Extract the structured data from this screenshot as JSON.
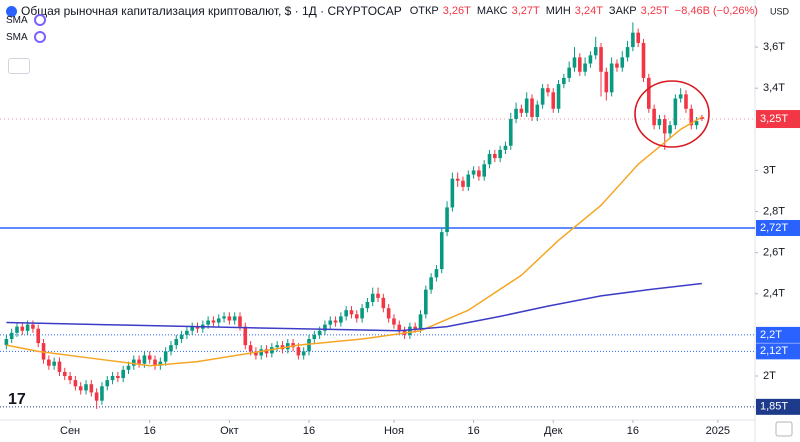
{
  "chart_data": {
    "type": "candlestick",
    "title": "Общая рыночная капитализация криптовалют, $ · 1Д · CRYPTOCAP",
    "header_stats": [
      {
        "label": "ОТКР",
        "value": "3,26T"
      },
      {
        "label": "МАКС",
        "value": "3,27T"
      },
      {
        "label": "МИН",
        "value": "3,24T"
      },
      {
        "label": "ЗАКР",
        "value": "3,25T"
      }
    ],
    "change": "−8,46B (−0,26%)",
    "currency": "USD",
    "up_color": "#089981",
    "down_color": "#f23645",
    "x": [
      0,
      1,
      2,
      3,
      4,
      5,
      6,
      7,
      8,
      9,
      10,
      11,
      12,
      13,
      14,
      15,
      16,
      17,
      18,
      19,
      20,
      21,
      22,
      23,
      24,
      25,
      26,
      27,
      28,
      29,
      30,
      31,
      32,
      33,
      34,
      35,
      36,
      37,
      38,
      39,
      40,
      41,
      42,
      43,
      44,
      45,
      46,
      47,
      48,
      49,
      50,
      51,
      52,
      53,
      54,
      55,
      56,
      57,
      58,
      59,
      60,
      61,
      62,
      63,
      64,
      65,
      66,
      67,
      68,
      69,
      70,
      71,
      72,
      73,
      74,
      75,
      76,
      77,
      78,
      79,
      80,
      81,
      82,
      83,
      84,
      85,
      86,
      87,
      88,
      89,
      90,
      91,
      92,
      93,
      94,
      95,
      96,
      97,
      98,
      99,
      100,
      101,
      102,
      103,
      104,
      105,
      106,
      107,
      108,
      109,
      110,
      111,
      112,
      113,
      114,
      115,
      116,
      117,
      118,
      119,
      120,
      121,
      122,
      123,
      124,
      125,
      126,
      127,
      128,
      129,
      130,
      131
    ],
    "open": [
      2.15,
      2.18,
      2.21,
      2.24,
      2.22,
      2.25,
      2.23,
      2.16,
      2.08,
      2.05,
      2.07,
      2.02,
      2.0,
      1.98,
      1.95,
      1.93,
      1.96,
      1.92,
      1.88,
      1.95,
      1.98,
      2.0,
      1.99,
      2.03,
      2.05,
      2.08,
      2.06,
      2.1,
      2.08,
      2.05,
      2.07,
      2.12,
      2.15,
      2.18,
      2.2,
      2.22,
      2.24,
      2.23,
      2.25,
      2.27,
      2.26,
      2.28,
      2.29,
      2.27,
      2.29,
      2.24,
      2.15,
      2.12,
      2.1,
      2.13,
      2.11,
      2.14,
      2.15,
      2.13,
      2.16,
      2.14,
      2.1,
      2.12,
      2.18,
      2.2,
      2.22,
      2.25,
      2.27,
      2.26,
      2.29,
      2.32,
      2.3,
      2.28,
      2.33,
      2.36,
      2.4,
      2.38,
      2.33,
      2.28,
      2.25,
      2.22,
      2.2,
      2.24,
      2.23,
      2.3,
      2.42,
      2.48,
      2.52,
      2.7,
      2.82,
      2.96,
      2.95,
      2.92,
      2.98,
      3.0,
      2.97,
      3.03,
      3.08,
      3.06,
      3.1,
      3.12,
      3.25,
      3.3,
      3.28,
      3.35,
      3.26,
      3.32,
      3.4,
      3.38,
      3.3,
      3.42,
      3.45,
      3.5,
      3.55,
      3.48,
      3.52,
      3.56,
      3.6,
      3.48,
      3.38,
      3.52,
      3.5,
      3.55,
      3.6,
      3.67,
      3.62,
      3.45,
      3.3,
      3.22,
      3.25,
      3.18,
      3.22,
      3.35,
      3.37,
      3.3,
      3.22,
      3.26
    ],
    "high": [
      2.2,
      2.23,
      2.26,
      2.26,
      2.27,
      2.27,
      2.25,
      2.18,
      2.1,
      2.09,
      2.09,
      2.04,
      2.02,
      2.0,
      1.97,
      1.98,
      1.98,
      1.94,
      1.97,
      2.0,
      2.02,
      2.02,
      2.05,
      2.07,
      2.1,
      2.1,
      2.12,
      2.12,
      2.1,
      2.09,
      2.14,
      2.17,
      2.2,
      2.22,
      2.24,
      2.26,
      2.26,
      2.27,
      2.29,
      2.29,
      2.3,
      2.31,
      2.31,
      2.31,
      2.31,
      2.26,
      2.17,
      2.14,
      2.15,
      2.15,
      2.16,
      2.17,
      2.17,
      2.18,
      2.18,
      2.16,
      2.14,
      2.2,
      2.22,
      2.24,
      2.27,
      2.29,
      2.29,
      2.31,
      2.34,
      2.34,
      2.32,
      2.35,
      2.38,
      2.43,
      2.43,
      2.4,
      2.35,
      2.3,
      2.27,
      2.24,
      2.26,
      2.26,
      2.32,
      2.44,
      2.5,
      2.54,
      2.72,
      2.85,
      2.99,
      2.99,
      2.97,
      3.0,
      3.02,
      3.02,
      3.05,
      3.1,
      3.1,
      3.12,
      3.14,
      3.28,
      3.33,
      3.32,
      3.38,
      3.37,
      3.34,
      3.42,
      3.42,
      3.4,
      3.44,
      3.47,
      3.53,
      3.6,
      3.57,
      3.55,
      3.58,
      3.65,
      3.62,
      3.5,
      3.55,
      3.54,
      3.58,
      3.63,
      3.72,
      3.69,
      3.64,
      3.47,
      3.32,
      3.27,
      3.27,
      3.24,
      3.37,
      3.4,
      3.39,
      3.32,
      3.26,
      3.27
    ],
    "low": [
      2.13,
      2.16,
      2.19,
      2.2,
      2.2,
      2.21,
      2.14,
      2.06,
      2.03,
      2.03,
      2.0,
      1.98,
      1.96,
      1.93,
      1.91,
      1.91,
      1.9,
      1.84,
      1.86,
      1.93,
      1.96,
      1.97,
      1.97,
      2.01,
      2.03,
      2.04,
      2.04,
      2.06,
      2.03,
      2.03,
      2.05,
      2.1,
      2.13,
      2.16,
      2.18,
      2.2,
      2.21,
      2.21,
      2.23,
      2.24,
      2.24,
      2.26,
      2.25,
      2.25,
      2.22,
      2.13,
      2.1,
      2.08,
      2.08,
      2.09,
      2.09,
      2.12,
      2.11,
      2.11,
      2.12,
      2.08,
      2.08,
      2.1,
      2.16,
      2.18,
      2.2,
      2.23,
      2.24,
      2.24,
      2.27,
      2.28,
      2.26,
      2.26,
      2.31,
      2.34,
      2.36,
      2.31,
      2.26,
      2.23,
      2.2,
      2.18,
      2.18,
      2.21,
      2.21,
      2.28,
      2.4,
      2.46,
      2.5,
      2.68,
      2.8,
      2.92,
      2.9,
      2.9,
      2.96,
      2.95,
      2.95,
      3.01,
      3.04,
      3.04,
      3.08,
      3.1,
      3.23,
      3.26,
      3.26,
      3.24,
      3.24,
      3.3,
      3.36,
      3.28,
      3.28,
      3.4,
      3.43,
      3.48,
      3.46,
      3.46,
      3.5,
      3.54,
      3.36,
      3.34,
      3.36,
      3.48,
      3.48,
      3.53,
      3.58,
      3.6,
      3.43,
      3.28,
      3.2,
      3.2,
      3.1,
      3.16,
      3.2,
      3.33,
      3.28,
      3.2,
      3.2,
      3.24
    ],
    "close": [
      2.18,
      2.21,
      2.24,
      2.22,
      2.25,
      2.23,
      2.16,
      2.08,
      2.05,
      2.07,
      2.02,
      2.0,
      1.98,
      1.95,
      1.93,
      1.96,
      1.92,
      1.88,
      1.95,
      1.98,
      2.0,
      1.99,
      2.03,
      2.05,
      2.08,
      2.06,
      2.1,
      2.08,
      2.05,
      2.07,
      2.12,
      2.15,
      2.18,
      2.2,
      2.22,
      2.24,
      2.23,
      2.25,
      2.27,
      2.26,
      2.28,
      2.29,
      2.27,
      2.29,
      2.24,
      2.15,
      2.12,
      2.1,
      2.13,
      2.11,
      2.14,
      2.15,
      2.13,
      2.16,
      2.14,
      2.1,
      2.12,
      2.18,
      2.2,
      2.22,
      2.25,
      2.27,
      2.26,
      2.29,
      2.32,
      2.3,
      2.28,
      2.33,
      2.36,
      2.4,
      2.38,
      2.33,
      2.28,
      2.25,
      2.22,
      2.2,
      2.24,
      2.23,
      2.3,
      2.42,
      2.48,
      2.52,
      2.7,
      2.82,
      2.96,
      2.95,
      2.92,
      2.98,
      3.0,
      2.97,
      3.03,
      3.08,
      3.06,
      3.1,
      3.12,
      3.25,
      3.3,
      3.28,
      3.35,
      3.26,
      3.32,
      3.4,
      3.38,
      3.3,
      3.42,
      3.45,
      3.5,
      3.55,
      3.48,
      3.52,
      3.56,
      3.6,
      3.48,
      3.38,
      3.52,
      3.5,
      3.55,
      3.6,
      3.67,
      3.62,
      3.45,
      3.3,
      3.22,
      3.25,
      3.18,
      3.22,
      3.35,
      3.37,
      3.3,
      3.22,
      3.24,
      3.25
    ],
    "series": [
      {
        "name": "SMA",
        "color": "#f5a623",
        "x": [
          0,
          6,
          18,
          27,
          36,
          48,
          55,
          67,
          78,
          87,
          97,
          104,
          112,
          119,
          127,
          131
        ],
        "values": [
          2.15,
          2.12,
          2.08,
          2.05,
          2.07,
          2.12,
          2.15,
          2.18,
          2.22,
          2.32,
          2.49,
          2.66,
          2.83,
          3.03,
          3.2,
          3.26
        ]
      },
      {
        "name": "SMA",
        "color": "#3c3cc8",
        "x": [
          0,
          18,
          36,
          55,
          74,
          83,
          93,
          102,
          112,
          121,
          131
        ],
        "values": [
          2.26,
          2.25,
          2.24,
          2.23,
          2.22,
          2.24,
          2.29,
          2.34,
          2.39,
          2.42,
          2.45
        ]
      }
    ],
    "price_lines": [
      {
        "value": 2.72,
        "label": "2,72Т",
        "color": "#2962ff",
        "style": "solid"
      },
      {
        "value": 2.2,
        "label": "2,2Т",
        "color": "#2962ff",
        "style": "dotted"
      },
      {
        "value": 2.12,
        "label": "2,12Т",
        "color": "#2962ff",
        "style": "dotted"
      },
      {
        "value": 1.85,
        "label": "1,85Т",
        "color": "#1e3a8a",
        "style": "dotted"
      }
    ],
    "last_price": {
      "value": 3.25,
      "label": "3,25Т",
      "color": "#f23645"
    },
    "xlim": [
      -1.2,
      141
    ],
    "xticks": [
      {
        "value": 12,
        "label": "Сен"
      },
      {
        "value": 27,
        "label": "16"
      },
      {
        "value": 42,
        "label": "Окт"
      },
      {
        "value": 57,
        "label": "16"
      },
      {
        "value": 73,
        "label": "Ноя"
      },
      {
        "value": 88,
        "label": "16"
      },
      {
        "value": 103,
        "label": "Дек"
      },
      {
        "value": 118,
        "label": "16"
      },
      {
        "value": 134,
        "label": "2025"
      }
    ],
    "ylim": [
      1.786,
      3.829
    ],
    "yticks": [
      {
        "value": 3.6,
        "label": "3,6Т"
      },
      {
        "value": 3.4,
        "label": "3,4Т"
      },
      {
        "value": 3,
        "label": "3Т"
      },
      {
        "value": 2.8,
        "label": "2,8Т"
      },
      {
        "value": 2.6,
        "label": "2,6Т"
      },
      {
        "value": 2.4,
        "label": "2,4Т"
      },
      {
        "value": 2,
        "label": "2Т"
      }
    ],
    "grid": false
  }
}
